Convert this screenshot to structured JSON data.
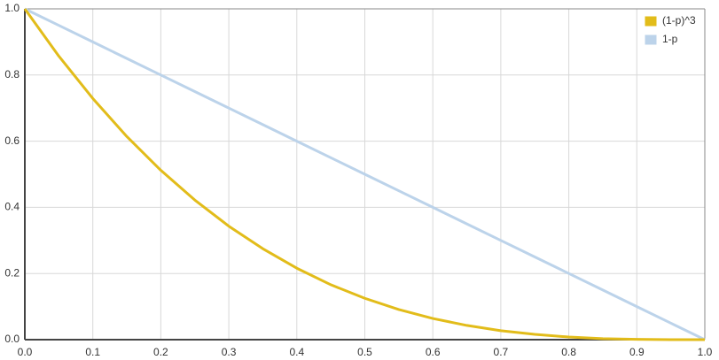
{
  "chart_data": {
    "type": "line",
    "x": [
      0,
      0.05,
      0.1,
      0.15,
      0.2,
      0.25,
      0.3,
      0.35,
      0.4,
      0.45,
      0.5,
      0.55,
      0.6,
      0.65,
      0.7,
      0.75,
      0.8,
      0.85,
      0.9,
      0.95,
      1
    ],
    "series": [
      {
        "name": "(1-p)^3",
        "color": "#e2bc1a",
        "values": [
          1,
          0.857,
          0.729,
          0.614,
          0.512,
          0.422,
          0.343,
          0.275,
          0.216,
          0.166,
          0.125,
          0.091,
          0.064,
          0.043,
          0.027,
          0.016,
          0.008,
          0.003,
          0.001,
          0,
          0
        ]
      },
      {
        "name": "1-p",
        "color": "#bcd3ea",
        "values": [
          1,
          0.95,
          0.9,
          0.85,
          0.8,
          0.75,
          0.7,
          0.65,
          0.6,
          0.55,
          0.5,
          0.45,
          0.4,
          0.35,
          0.3,
          0.25,
          0.2,
          0.15,
          0.1,
          0.05,
          0
        ]
      }
    ],
    "xlim": [
      0,
      1
    ],
    "xticks": [
      {
        "value": 0,
        "label": "0.0"
      },
      0.1,
      0.2,
      0.3,
      0.4,
      0.5,
      0.6,
      0.7,
      0.8,
      0.9,
      {
        "value": 1,
        "label": "1.0"
      }
    ],
    "ylim": [
      0,
      1
    ],
    "yticks": [
      {
        "value": 0,
        "label": "0.0"
      },
      0.2,
      0.4,
      0.6,
      0.8,
      {
        "value": 1,
        "label": "1.0"
      }
    ],
    "grid": true,
    "legend": "top-right"
  }
}
